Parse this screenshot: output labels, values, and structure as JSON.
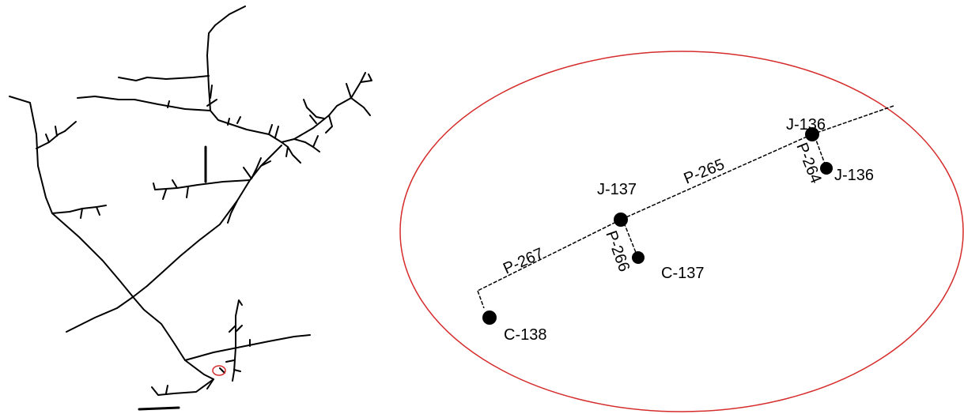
{
  "colors": {
    "network_line": "#000000",
    "highlight": "#d62b2b",
    "node_fill": "#000000",
    "background": "#ffffff"
  },
  "detail": {
    "nodes": {
      "j136_main": "J-136",
      "j136_branch": "J-136",
      "j137": "J-137",
      "c137": "C-137",
      "c138": "C-138"
    },
    "pipes": {
      "p264": "P-264",
      "p265": "P-265",
      "p266": "P-266",
      "p267": "P-267"
    }
  }
}
